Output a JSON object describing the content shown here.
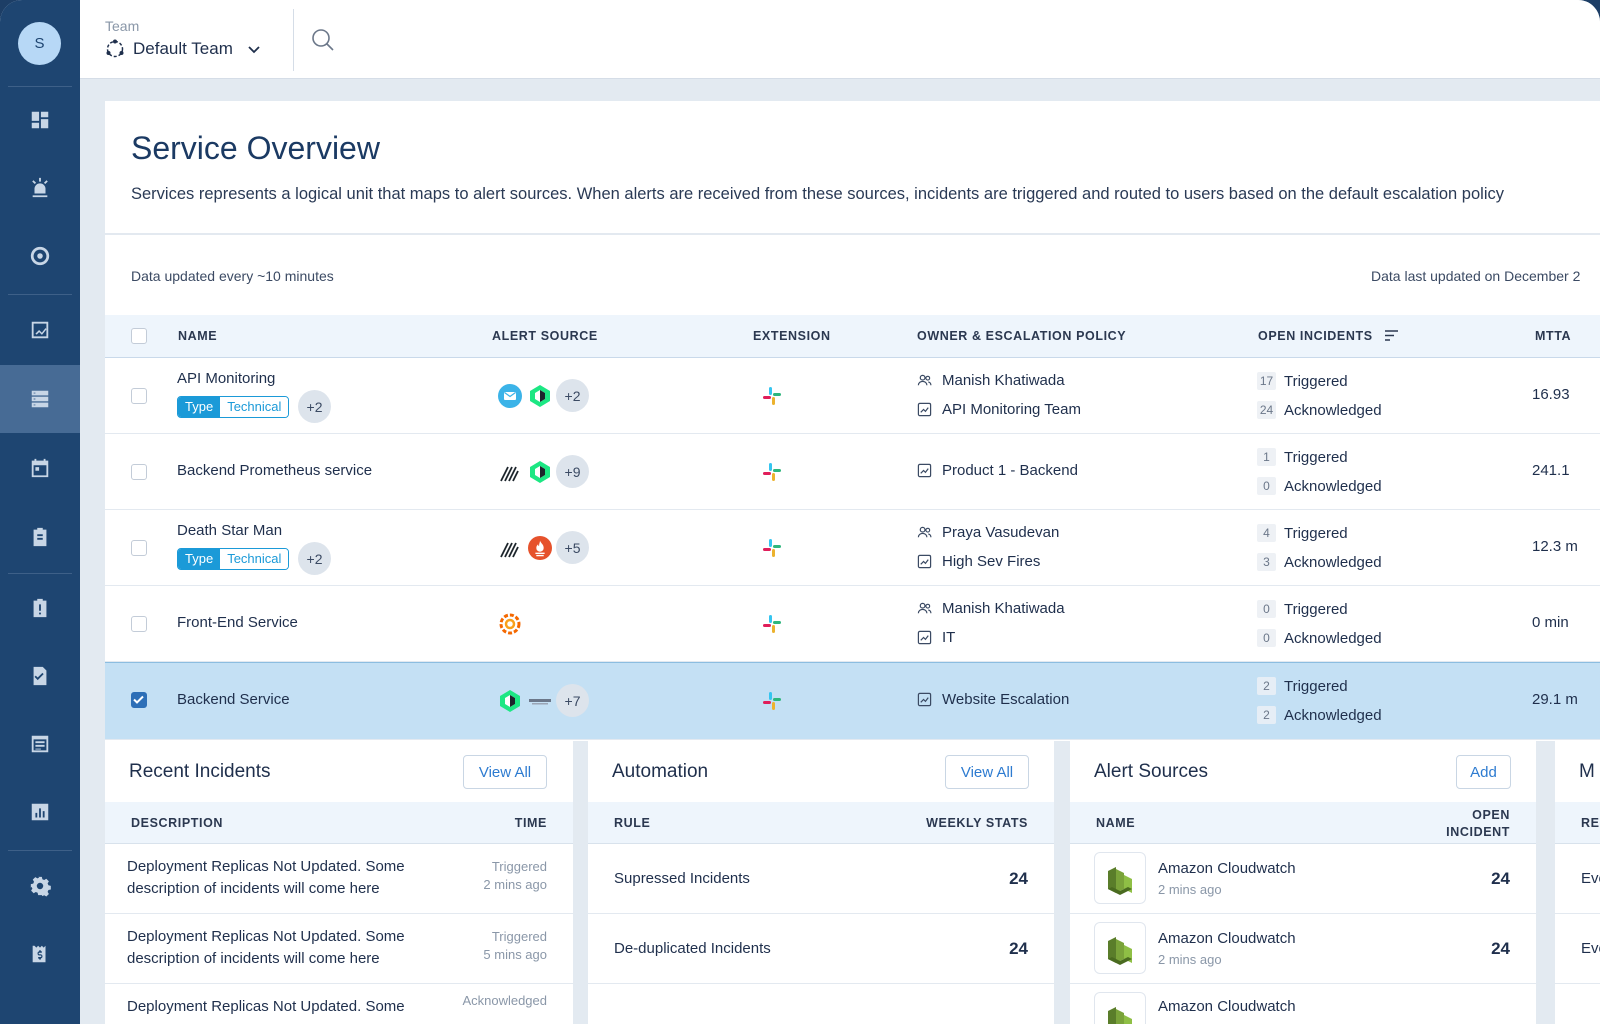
{
  "user": {
    "initial": "S"
  },
  "sidebar": {
    "items": [
      "dashboard-icon",
      "incidents-icon",
      "target-icon",
      "analytics-icon",
      "services-icon",
      "calendar-icon",
      "clipboard-icon",
      "clipboard-alert-icon",
      "checklist-icon",
      "runbook-icon",
      "reports-icon",
      "settings-icon",
      "billing-icon"
    ]
  },
  "header": {
    "team_label": "Team",
    "team_name": "Default Team"
  },
  "page": {
    "title": "Service Overview",
    "description": "Services represents a logical unit that maps to alert sources. When alerts are received from these sources, incidents are triggered and routed to users based on the default escalation policy",
    "data_updated": "Data updated every ~10 minutes",
    "last_updated": "Data last updated on December 2"
  },
  "table": {
    "columns": {
      "name": "NAME",
      "alert_source": "ALERT SOURCE",
      "extension": "EXTENSION",
      "owner": "OWNER & ESCALATION POLICY",
      "open_incidents": "OPEN INCIDENTS",
      "mtta": "MTTA"
    },
    "rows": [
      {
        "name": "API Monitoring",
        "tag_a": "Type",
        "tag_b": "Technical",
        "tag_more": "+2",
        "sources_more": "+2",
        "owner": "Manish Khatiwada",
        "policy": "API Monitoring Team",
        "triggered": "17",
        "triggered_label": "Triggered",
        "ack": "24",
        "ack_label": "Acknowledged",
        "mtta": "16.93",
        "selected": false
      },
      {
        "name": "Backend Prometheus service",
        "sources_more": "+9",
        "policy": "Product 1 - Backend",
        "triggered": "1",
        "triggered_label": "Triggered",
        "ack": "0",
        "ack_label": "Acknowledged",
        "mtta": "241.1",
        "selected": false
      },
      {
        "name": "Death Star Man",
        "tag_a": "Type",
        "tag_b": "Technical",
        "tag_more": "+2",
        "sources_more": "+5",
        "owner": "Praya Vasudevan",
        "policy": "High Sev Fires",
        "triggered": "4",
        "triggered_label": "Triggered",
        "ack": "3",
        "ack_label": "Acknowledged",
        "mtta": "12.3 m",
        "selected": false
      },
      {
        "name": "Front-End Service",
        "owner": "Manish Khatiwada",
        "policy": "IT",
        "triggered": "0",
        "triggered_label": "Triggered",
        "ack": "0",
        "ack_label": "Acknowledged",
        "mtta": "0 min",
        "selected": false
      },
      {
        "name": "Backend Service",
        "sources_more": "+7",
        "policy": "Website Escalation",
        "triggered": "2",
        "triggered_label": "Triggered",
        "ack": "2",
        "ack_label": "Acknowledged",
        "mtta": "29.1 m",
        "selected": true
      }
    ]
  },
  "recent_incidents": {
    "title": "Recent Incidents",
    "button": "View All",
    "col_desc": "DESCRIPTION",
    "col_time": "TIME",
    "items": [
      {
        "text": "Deployment Replicas Not Updated. Some description of incidents will come here",
        "status": "Triggered",
        "time": "2 mins ago"
      },
      {
        "text": "Deployment Replicas Not Updated. Some description of incidents will come here",
        "status": "Triggered",
        "time": "5 mins ago"
      },
      {
        "text": "Deployment Replicas Not Updated. Some",
        "status": "Acknowledged",
        "time": ""
      }
    ]
  },
  "automation": {
    "title": "Automation",
    "button": "View All",
    "col_rule": "RULE",
    "col_stats": "WEEKLY STATS",
    "items": [
      {
        "rule": "Supressed Incidents",
        "value": "24"
      },
      {
        "rule": "De-duplicated Incidents",
        "value": "24"
      }
    ]
  },
  "alert_sources": {
    "title": "Alert Sources",
    "button": "Add",
    "col_name": "NAME",
    "col_open": "OPEN INCIDENT",
    "items": [
      {
        "name": "Amazon Cloudwatch",
        "time": "2 mins ago",
        "value": "24"
      },
      {
        "name": "Amazon Cloudwatch",
        "time": "2 mins ago",
        "value": "24"
      },
      {
        "name": "Amazon Cloudwatch",
        "time": "",
        "value": ""
      }
    ]
  },
  "fourth_panel": {
    "title": "M",
    "col": "RE",
    "items": [
      "Eve",
      "Eve"
    ]
  }
}
